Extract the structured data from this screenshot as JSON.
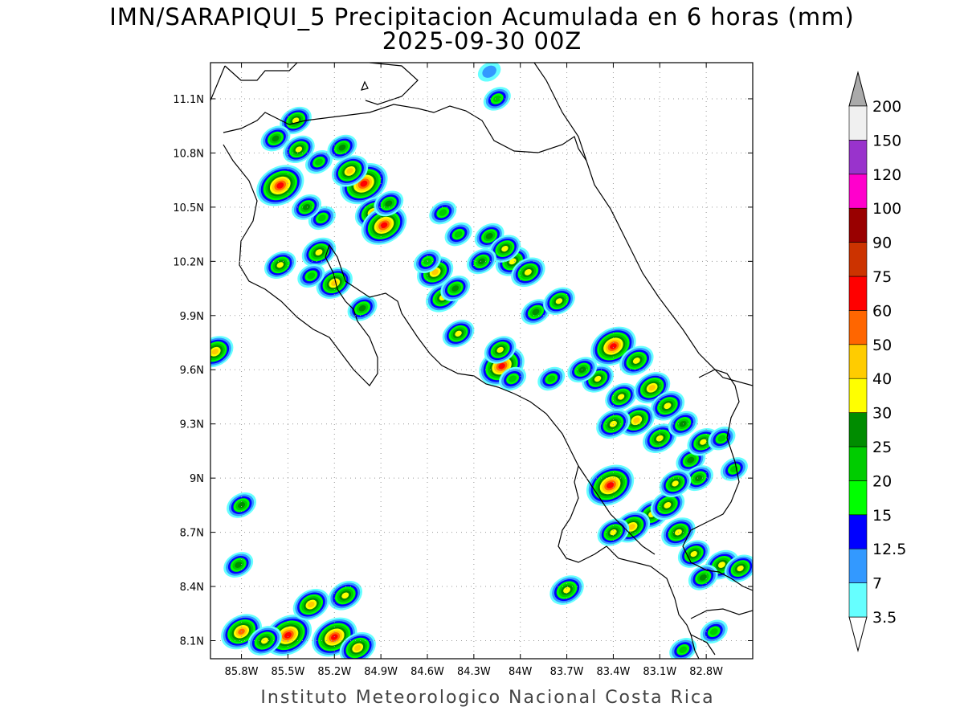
{
  "title": {
    "line1": "IMN/SARAPIQUI_5 Precipitacion Acumulada en 6 horas (mm)",
    "line2": "2025-09-30 00Z"
  },
  "footer": "Instituto Meteorologico Nacional Costa Rica",
  "map": {
    "lon_range": [
      -86.0,
      -82.5
    ],
    "lat_range": [
      8.0,
      11.3
    ],
    "lon_ticks": [
      {
        "value": -85.8,
        "label": "85.8W"
      },
      {
        "value": -85.5,
        "label": "85.5W"
      },
      {
        "value": -85.2,
        "label": "85.2W"
      },
      {
        "value": -84.9,
        "label": "84.9W"
      },
      {
        "value": -84.6,
        "label": "84.6W"
      },
      {
        "value": -84.3,
        "label": "84.3W"
      },
      {
        "value": -84.0,
        "label": "84W"
      },
      {
        "value": -83.7,
        "label": "83.7W"
      },
      {
        "value": -83.4,
        "label": "83.4W"
      },
      {
        "value": -83.1,
        "label": "83.1W"
      },
      {
        "value": -82.8,
        "label": "82.8W"
      }
    ],
    "lat_ticks": [
      {
        "value": 11.1,
        "label": "11.1N"
      },
      {
        "value": 10.8,
        "label": "10.8N"
      },
      {
        "value": 10.5,
        "label": "10.5N"
      },
      {
        "value": 10.2,
        "label": "10.2N"
      },
      {
        "value": 9.9,
        "label": "9.9N"
      },
      {
        "value": 9.6,
        "label": "9.6N"
      },
      {
        "value": 9.3,
        "label": "9.3N"
      },
      {
        "value": 9.0,
        "label": "9N"
      },
      {
        "value": 8.7,
        "label": "8.7N"
      },
      {
        "value": 8.4,
        "label": "8.4N"
      },
      {
        "value": 8.1,
        "label": "8.1N"
      }
    ],
    "grid": true,
    "coastline_color": "#000000"
  },
  "colorbar": {
    "levels": [
      "3.5",
      "7",
      "12.5",
      "15",
      "20",
      "25",
      "30",
      "40",
      "50",
      "60",
      "75",
      "90",
      "100",
      "120",
      "150",
      "200"
    ],
    "colors": [
      "#ffffff",
      "#66ffff",
      "#3399ff",
      "#0000ff",
      "#00ff00",
      "#00cc00",
      "#008c00",
      "#ffff00",
      "#ffcc00",
      "#ff6600",
      "#ff0000",
      "#cc3300",
      "#990000",
      "#ff00cc",
      "#9933cc",
      "#f0f0f0",
      "#aaaaaa"
    ]
  },
  "chart_data": {
    "type": "heatmap",
    "variable": "Precipitacion Acumulada en 6 horas (mm)",
    "units": "mm",
    "cells": [
      {
        "lon": -85.55,
        "lat": 10.62,
        "value": 65
      },
      {
        "lon": -85.45,
        "lat": 10.98,
        "value": 30
      },
      {
        "lon": -85.58,
        "lat": 10.88,
        "value": 25
      },
      {
        "lon": -85.43,
        "lat": 10.82,
        "value": 30
      },
      {
        "lon": -85.3,
        "lat": 10.75,
        "value": 20
      },
      {
        "lon": -85.28,
        "lat": 10.44,
        "value": 20
      },
      {
        "lon": -85.15,
        "lat": 10.83,
        "value": 25
      },
      {
        "lon": -85.38,
        "lat": 10.5,
        "value": 25
      },
      {
        "lon": -85.01,
        "lat": 10.63,
        "value": 65
      },
      {
        "lon": -85.1,
        "lat": 10.7,
        "value": 40
      },
      {
        "lon": -84.95,
        "lat": 10.47,
        "value": 40
      },
      {
        "lon": -84.88,
        "lat": 10.4,
        "value": 60
      },
      {
        "lon": -84.85,
        "lat": 10.52,
        "value": 25
      },
      {
        "lon": -85.3,
        "lat": 10.25,
        "value": 35
      },
      {
        "lon": -85.55,
        "lat": 10.18,
        "value": 30
      },
      {
        "lon": -85.2,
        "lat": 10.08,
        "value": 40
      },
      {
        "lon": -85.02,
        "lat": 9.94,
        "value": 25
      },
      {
        "lon": -85.35,
        "lat": 10.12,
        "value": 20
      },
      {
        "lon": -84.5,
        "lat": 10.47,
        "value": 20
      },
      {
        "lon": -84.4,
        "lat": 10.35,
        "value": 20
      },
      {
        "lon": -84.2,
        "lat": 10.34,
        "value": 25
      },
      {
        "lon": -84.05,
        "lat": 10.2,
        "value": 35
      },
      {
        "lon": -84.1,
        "lat": 10.27,
        "value": 30
      },
      {
        "lon": -84.25,
        "lat": 10.2,
        "value": 25
      },
      {
        "lon": -84.55,
        "lat": 10.14,
        "value": 40
      },
      {
        "lon": -84.6,
        "lat": 10.2,
        "value": 20
      },
      {
        "lon": -84.5,
        "lat": 10.0,
        "value": 35
      },
      {
        "lon": -84.42,
        "lat": 10.05,
        "value": 25
      },
      {
        "lon": -84.4,
        "lat": 9.8,
        "value": 30
      },
      {
        "lon": -83.95,
        "lat": 10.14,
        "value": 35
      },
      {
        "lon": -83.9,
        "lat": 9.92,
        "value": 25
      },
      {
        "lon": -83.75,
        "lat": 9.98,
        "value": 30
      },
      {
        "lon": -84.12,
        "lat": 9.62,
        "value": 60
      },
      {
        "lon": -84.13,
        "lat": 9.71,
        "value": 30
      },
      {
        "lon": -83.4,
        "lat": 9.73,
        "value": 60
      },
      {
        "lon": -83.25,
        "lat": 9.65,
        "value": 35
      },
      {
        "lon": -83.5,
        "lat": 9.55,
        "value": 30
      },
      {
        "lon": -83.35,
        "lat": 9.45,
        "value": 30
      },
      {
        "lon": -83.15,
        "lat": 9.5,
        "value": 40
      },
      {
        "lon": -83.05,
        "lat": 9.4,
        "value": 35
      },
      {
        "lon": -83.25,
        "lat": 9.32,
        "value": 40
      },
      {
        "lon": -83.4,
        "lat": 9.3,
        "value": 35
      },
      {
        "lon": -83.1,
        "lat": 9.22,
        "value": 35
      },
      {
        "lon": -82.95,
        "lat": 9.3,
        "value": 25
      },
      {
        "lon": -82.9,
        "lat": 9.1,
        "value": 25
      },
      {
        "lon": -82.82,
        "lat": 9.2,
        "value": 30
      },
      {
        "lon": -82.85,
        "lat": 9.0,
        "value": 25
      },
      {
        "lon": -83.42,
        "lat": 8.96,
        "value": 65
      },
      {
        "lon": -83.15,
        "lat": 8.8,
        "value": 35
      },
      {
        "lon": -83.05,
        "lat": 8.85,
        "value": 35
      },
      {
        "lon": -82.98,
        "lat": 8.7,
        "value": 35
      },
      {
        "lon": -83.28,
        "lat": 8.73,
        "value": 40
      },
      {
        "lon": -83.4,
        "lat": 8.7,
        "value": 30
      },
      {
        "lon": -82.88,
        "lat": 8.58,
        "value": 30
      },
      {
        "lon": -82.7,
        "lat": 8.52,
        "value": 35
      },
      {
        "lon": -82.58,
        "lat": 8.5,
        "value": 30
      },
      {
        "lon": -82.82,
        "lat": 8.45,
        "value": 25
      },
      {
        "lon": -83.0,
        "lat": 8.97,
        "value": 30
      },
      {
        "lon": -83.7,
        "lat": 8.38,
        "value": 35
      },
      {
        "lon": -85.97,
        "lat": 9.7,
        "value": 40
      },
      {
        "lon": -85.8,
        "lat": 8.85,
        "value": 25
      },
      {
        "lon": -85.82,
        "lat": 8.52,
        "value": 25
      },
      {
        "lon": -85.8,
        "lat": 8.15,
        "value": 50
      },
      {
        "lon": -85.5,
        "lat": 8.13,
        "value": 65
      },
      {
        "lon": -85.35,
        "lat": 8.3,
        "value": 40
      },
      {
        "lon": -85.2,
        "lat": 8.12,
        "value": 60
      },
      {
        "lon": -85.13,
        "lat": 8.35,
        "value": 35
      },
      {
        "lon": -85.05,
        "lat": 8.06,
        "value": 40
      },
      {
        "lon": -85.65,
        "lat": 8.1,
        "value": 35
      },
      {
        "lon": -84.15,
        "lat": 11.1,
        "value": 20
      },
      {
        "lon": -84.2,
        "lat": 11.25,
        "value": 10
      },
      {
        "lon": -84.05,
        "lat": 9.55,
        "value": 20
      },
      {
        "lon": -83.8,
        "lat": 9.55,
        "value": 20
      },
      {
        "lon": -83.6,
        "lat": 9.6,
        "value": 25
      },
      {
        "lon": -82.95,
        "lat": 8.05,
        "value": 20
      },
      {
        "lon": -82.75,
        "lat": 8.15,
        "value": 20
      },
      {
        "lon": -82.62,
        "lat": 9.05,
        "value": 20
      },
      {
        "lon": -82.7,
        "lat": 9.22,
        "value": 20
      }
    ]
  }
}
